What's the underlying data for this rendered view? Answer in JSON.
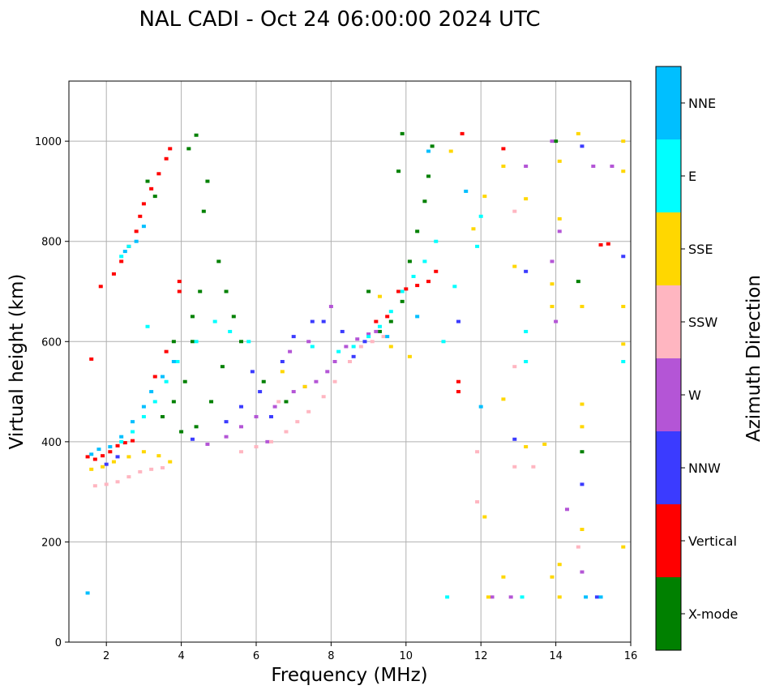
{
  "chart_data": {
    "type": "scatter",
    "title": "NAL CADI - Oct 24 06:00:00 2024 UTC",
    "xlabel": "Frequency (MHz)",
    "ylabel": "Virtual height (km)",
    "xlim": [
      1,
      16
    ],
    "ylim": [
      0,
      1120
    ],
    "xticks": [
      2,
      4,
      6,
      8,
      10,
      12,
      14,
      16
    ],
    "yticks": [
      0,
      200,
      400,
      600,
      800,
      1000
    ],
    "grid": true,
    "colorbar": {
      "label": "Azimuth Direction",
      "categories": [
        {
          "name": "X-mode",
          "color": "#008000"
        },
        {
          "name": "Vertical",
          "color": "#ff0000"
        },
        {
          "name": "NNW",
          "color": "#3b3bff"
        },
        {
          "name": "W",
          "color": "#b455d6"
        },
        {
          "name": "SSW",
          "color": "#ffb6c1"
        },
        {
          "name": "SSE",
          "color": "#ffd700"
        },
        {
          "name": "E",
          "color": "#00ffff"
        },
        {
          "name": "NNE",
          "color": "#00bfff"
        }
      ]
    },
    "series": [
      {
        "name": "Vertical",
        "points": [
          [
            1.5,
            370
          ],
          [
            1.7,
            365
          ],
          [
            1.9,
            372
          ],
          [
            2.1,
            380
          ],
          [
            2.3,
            392
          ],
          [
            2.5,
            398
          ],
          [
            2.7,
            402
          ],
          [
            2.2,
            735
          ],
          [
            2.4,
            760
          ],
          [
            2.6,
            790
          ],
          [
            2.8,
            820
          ],
          [
            2.9,
            850
          ],
          [
            3.0,
            875
          ],
          [
            3.2,
            905
          ],
          [
            3.4,
            935
          ],
          [
            3.6,
            965
          ],
          [
            3.7,
            985
          ],
          [
            3.95,
            720
          ],
          [
            3.95,
            700
          ],
          [
            3.3,
            530
          ],
          [
            3.6,
            580
          ],
          [
            9.2,
            640
          ],
          [
            9.5,
            650
          ],
          [
            9.8,
            700
          ],
          [
            10.0,
            705
          ],
          [
            10.3,
            712
          ],
          [
            10.6,
            720
          ],
          [
            10.8,
            740
          ],
          [
            11.4,
            500
          ],
          [
            11.4,
            520
          ],
          [
            15.2,
            793
          ],
          [
            15.4,
            795
          ],
          [
            11.5,
            1015
          ],
          [
            12.6,
            985
          ],
          [
            1.6,
            565
          ],
          [
            1.85,
            710
          ]
        ]
      },
      {
        "name": "X-mode",
        "points": [
          [
            3.5,
            450
          ],
          [
            3.8,
            480
          ],
          [
            4.1,
            520
          ],
          [
            4.3,
            600
          ],
          [
            4.5,
            700
          ],
          [
            4.6,
            860
          ],
          [
            4.7,
            920
          ],
          [
            4.4,
            1012
          ],
          [
            4.2,
            985
          ],
          [
            5.0,
            760
          ],
          [
            5.2,
            700
          ],
          [
            5.4,
            650
          ],
          [
            5.6,
            600
          ],
          [
            5.1,
            550
          ],
          [
            4.8,
            480
          ],
          [
            4.4,
            430
          ],
          [
            4.0,
            420
          ],
          [
            3.8,
            600
          ],
          [
            4.3,
            650
          ],
          [
            3.1,
            920
          ],
          [
            3.3,
            890
          ],
          [
            6.2,
            520
          ],
          [
            6.8,
            480
          ],
          [
            9.0,
            700
          ],
          [
            9.3,
            620
          ],
          [
            9.6,
            640
          ],
          [
            9.9,
            680
          ],
          [
            10.1,
            760
          ],
          [
            10.3,
            820
          ],
          [
            10.5,
            880
          ],
          [
            10.6,
            930
          ],
          [
            10.7,
            990
          ],
          [
            9.9,
            1015
          ],
          [
            9.8,
            940
          ],
          [
            14.7,
            380
          ],
          [
            14.6,
            720
          ],
          [
            14.0,
            1000
          ]
        ]
      },
      {
        "name": "NNW",
        "points": [
          [
            2.0,
            355
          ],
          [
            2.3,
            370
          ],
          [
            4.3,
            405
          ],
          [
            5.2,
            440
          ],
          [
            5.6,
            470
          ],
          [
            6.1,
            500
          ],
          [
            6.7,
            560
          ],
          [
            7.0,
            610
          ],
          [
            7.5,
            640
          ],
          [
            7.8,
            640
          ],
          [
            8.3,
            620
          ],
          [
            8.6,
            570
          ],
          [
            8.9,
            600
          ],
          [
            5.9,
            540
          ],
          [
            6.4,
            450
          ],
          [
            11.4,
            640
          ],
          [
            13.2,
            740
          ],
          [
            14.7,
            990
          ],
          [
            14.7,
            315
          ],
          [
            15.1,
            90
          ],
          [
            15.8,
            770
          ],
          [
            12.9,
            405
          ]
        ]
      },
      {
        "name": "W",
        "points": [
          [
            4.7,
            395
          ],
          [
            5.2,
            410
          ],
          [
            5.6,
            430
          ],
          [
            6.0,
            450
          ],
          [
            6.5,
            470
          ],
          [
            7.0,
            500
          ],
          [
            7.3,
            510
          ],
          [
            7.6,
            520
          ],
          [
            7.9,
            540
          ],
          [
            8.1,
            560
          ],
          [
            8.4,
            590
          ],
          [
            8.7,
            605
          ],
          [
            9.0,
            615
          ],
          [
            9.2,
            620
          ],
          [
            6.3,
            400
          ],
          [
            6.9,
            580
          ],
          [
            7.4,
            600
          ],
          [
            8.0,
            670
          ],
          [
            13.9,
            1000
          ],
          [
            13.2,
            950
          ],
          [
            14.1,
            820
          ],
          [
            15.0,
            950
          ],
          [
            15.5,
            950
          ],
          [
            14.0,
            640
          ],
          [
            13.9,
            760
          ],
          [
            14.3,
            265
          ],
          [
            14.7,
            140
          ],
          [
            12.8,
            90
          ],
          [
            12.3,
            90
          ]
        ]
      },
      {
        "name": "SSW",
        "points": [
          [
            1.7,
            312
          ],
          [
            2.0,
            315
          ],
          [
            2.3,
            320
          ],
          [
            2.6,
            330
          ],
          [
            2.9,
            340
          ],
          [
            3.2,
            345
          ],
          [
            3.5,
            348
          ],
          [
            5.6,
            380
          ],
          [
            6.0,
            390
          ],
          [
            6.4,
            400
          ],
          [
            6.8,
            420
          ],
          [
            7.1,
            440
          ],
          [
            7.4,
            460
          ],
          [
            7.8,
            490
          ],
          [
            8.1,
            520
          ],
          [
            8.5,
            560
          ],
          [
            8.8,
            590
          ],
          [
            9.1,
            600
          ],
          [
            9.4,
            610
          ],
          [
            6.6,
            480
          ],
          [
            11.9,
            380
          ],
          [
            11.9,
            280
          ],
          [
            12.9,
            860
          ],
          [
            12.9,
            550
          ],
          [
            12.9,
            350
          ],
          [
            13.4,
            350
          ],
          [
            14.6,
            190
          ]
        ]
      },
      {
        "name": "SSE",
        "points": [
          [
            1.6,
            345
          ],
          [
            1.9,
            350
          ],
          [
            2.2,
            360
          ],
          [
            2.6,
            370
          ],
          [
            3.0,
            380
          ],
          [
            3.4,
            372
          ],
          [
            3.7,
            360
          ],
          [
            6.7,
            540
          ],
          [
            7.3,
            510
          ],
          [
            9.3,
            690
          ],
          [
            9.6,
            590
          ],
          [
            10.1,
            570
          ],
          [
            11.2,
            980
          ],
          [
            11.8,
            825
          ],
          [
            12.1,
            890
          ],
          [
            12.6,
            950
          ],
          [
            12.9,
            750
          ],
          [
            13.2,
            885
          ],
          [
            13.2,
            390
          ],
          [
            12.6,
            485
          ],
          [
            13.9,
            715
          ],
          [
            13.9,
            670
          ],
          [
            14.1,
            960
          ],
          [
            14.1,
            845
          ],
          [
            14.6,
            1015
          ],
          [
            14.7,
            670
          ],
          [
            14.7,
            475
          ],
          [
            14.7,
            430
          ],
          [
            14.7,
            225
          ],
          [
            14.1,
            90
          ],
          [
            14.1,
            155
          ],
          [
            13.9,
            130
          ],
          [
            12.6,
            130
          ],
          [
            12.1,
            250
          ],
          [
            12.2,
            90
          ],
          [
            15.8,
            1000
          ],
          [
            15.8,
            940
          ],
          [
            15.8,
            670
          ],
          [
            15.8,
            595
          ],
          [
            15.8,
            190
          ],
          [
            13.7,
            395
          ]
        ]
      },
      {
        "name": "E",
        "points": [
          [
            2.4,
            400
          ],
          [
            2.7,
            420
          ],
          [
            3.0,
            450
          ],
          [
            3.3,
            480
          ],
          [
            3.6,
            520
          ],
          [
            3.9,
            560
          ],
          [
            4.4,
            600
          ],
          [
            4.9,
            640
          ],
          [
            5.3,
            620
          ],
          [
            5.8,
            600
          ],
          [
            7.5,
            590
          ],
          [
            8.2,
            580
          ],
          [
            8.6,
            590
          ],
          [
            9.0,
            610
          ],
          [
            9.3,
            630
          ],
          [
            9.6,
            660
          ],
          [
            9.9,
            700
          ],
          [
            10.2,
            730
          ],
          [
            10.5,
            760
          ],
          [
            10.8,
            800
          ],
          [
            11.0,
            600
          ],
          [
            2.4,
            770
          ],
          [
            2.6,
            790
          ],
          [
            3.1,
            630
          ],
          [
            11.1,
            90
          ],
          [
            13.1,
            90
          ],
          [
            13.2,
            560
          ],
          [
            13.2,
            620
          ],
          [
            11.3,
            710
          ],
          [
            15.8,
            560
          ],
          [
            12.0,
            850
          ],
          [
            11.9,
            790
          ]
        ]
      },
      {
        "name": "NNE",
        "points": [
          [
            1.6,
            375
          ],
          [
            1.8,
            385
          ],
          [
            2.1,
            390
          ],
          [
            2.4,
            410
          ],
          [
            2.7,
            440
          ],
          [
            3.0,
            470
          ],
          [
            3.2,
            500
          ],
          [
            3.5,
            530
          ],
          [
            3.8,
            560
          ],
          [
            2.5,
            780
          ],
          [
            2.8,
            800
          ],
          [
            3.0,
            830
          ],
          [
            9.5,
            610
          ],
          [
            10.3,
            650
          ],
          [
            10.6,
            980
          ],
          [
            11.6,
            900
          ],
          [
            12.0,
            470
          ],
          [
            1.5,
            98
          ],
          [
            14.8,
            90
          ],
          [
            15.2,
            90
          ]
        ]
      }
    ]
  }
}
